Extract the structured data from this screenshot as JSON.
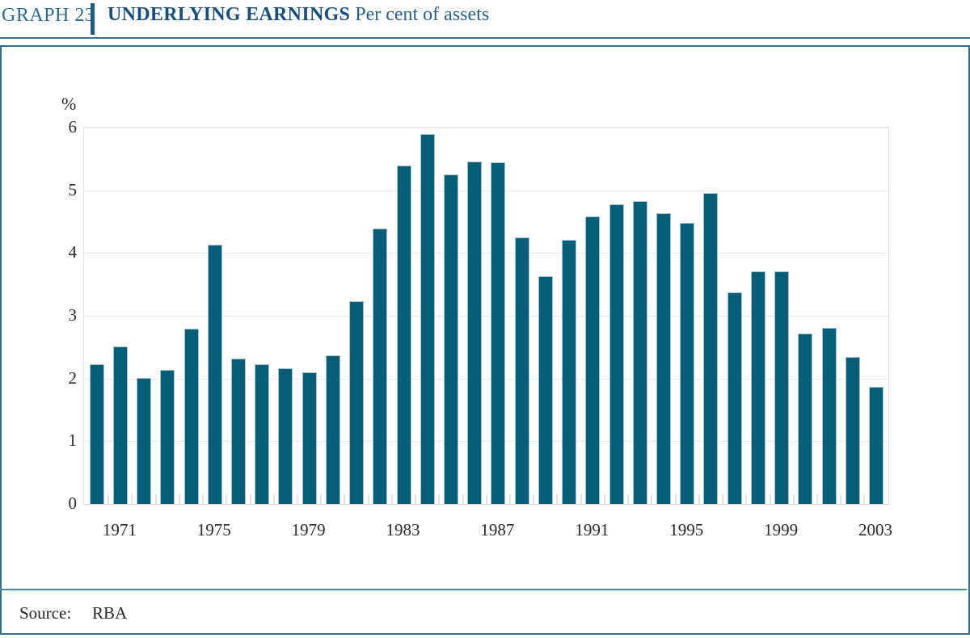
{
  "header": {
    "graph_label": "GRAPH 23",
    "title": "UNDERLYING EARNINGS",
    "subtitle": " Per cent of assets"
  },
  "source": {
    "label": "Source:",
    "value": "RBA"
  },
  "colors": {
    "bar_fill": "#045E78",
    "bar_edge": "#A6C3D0",
    "box_border": "#2E6E91",
    "header_bar_blue": "#1D5C89",
    "title_blue": "#174E7C",
    "gridline": "#E8E8E8"
  },
  "chart_data": {
    "type": "bar",
    "title": "UNDERLYING EARNINGS",
    "subtitle": "Per cent of assets",
    "unit_label": "%",
    "categories": [
      1970,
      1971,
      1972,
      1973,
      1974,
      1975,
      1976,
      1977,
      1978,
      1979,
      1980,
      1981,
      1982,
      1983,
      1984,
      1985,
      1986,
      1987,
      1988,
      1989,
      1990,
      1991,
      1992,
      1993,
      1994,
      1995,
      1996,
      1997,
      1998,
      1999,
      2000,
      2001,
      2002,
      2003
    ],
    "values": [
      2.22,
      2.5,
      2.0,
      2.13,
      2.78,
      4.12,
      2.3,
      2.22,
      2.15,
      2.09,
      2.36,
      3.22,
      4.38,
      5.38,
      5.88,
      5.24,
      5.45,
      5.44,
      4.24,
      3.62,
      4.2,
      4.57,
      4.77,
      4.81,
      4.62,
      4.47,
      4.95,
      3.36,
      3.7,
      3.7,
      2.71,
      2.79,
      2.33,
      1.86
    ],
    "ylim": [
      0,
      6
    ],
    "yticks": [
      0,
      1,
      2,
      3,
      4,
      5,
      6
    ],
    "xtick_labels": [
      "1971",
      "1975",
      "1979",
      "1983",
      "1987",
      "1991",
      "1995",
      "1999",
      "2003"
    ],
    "grid": "horizontal",
    "legend": "none"
  }
}
